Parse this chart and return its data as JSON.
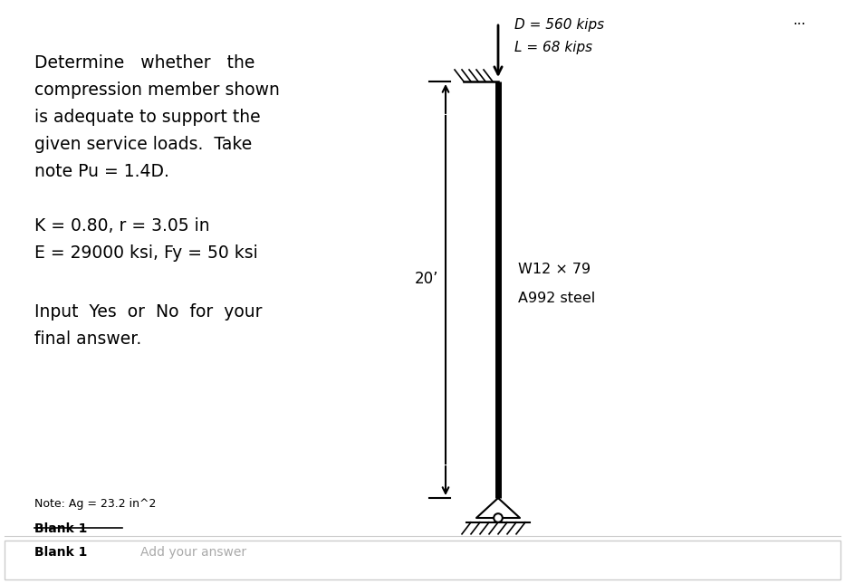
{
  "bg_color": "#ffffff",
  "text_color": "#000000",
  "title_lines": [
    "Determine   whether   the",
    "compression member shown",
    "is adequate to support the",
    "given service loads.  Take",
    "note Pu = 1.4D."
  ],
  "param_lines": [
    "K = 0.80, r = 3.05 in",
    "E = 29000 ksi, Fy = 50 ksi"
  ],
  "input_lines": [
    "Input  Yes  or  No  for  your",
    "final answer."
  ],
  "note_text": "Note: Ag = 23.2 in^2",
  "blank1_label": "Blank 1",
  "blank1_input": "Add your answer",
  "load_label_D": "D = 560 kips",
  "load_label_L": "L = 68 kips",
  "dimension_label": "20’",
  "section_label_1": "W12 × 79",
  "section_label_2": "A992 steel",
  "ellipsis": "..."
}
